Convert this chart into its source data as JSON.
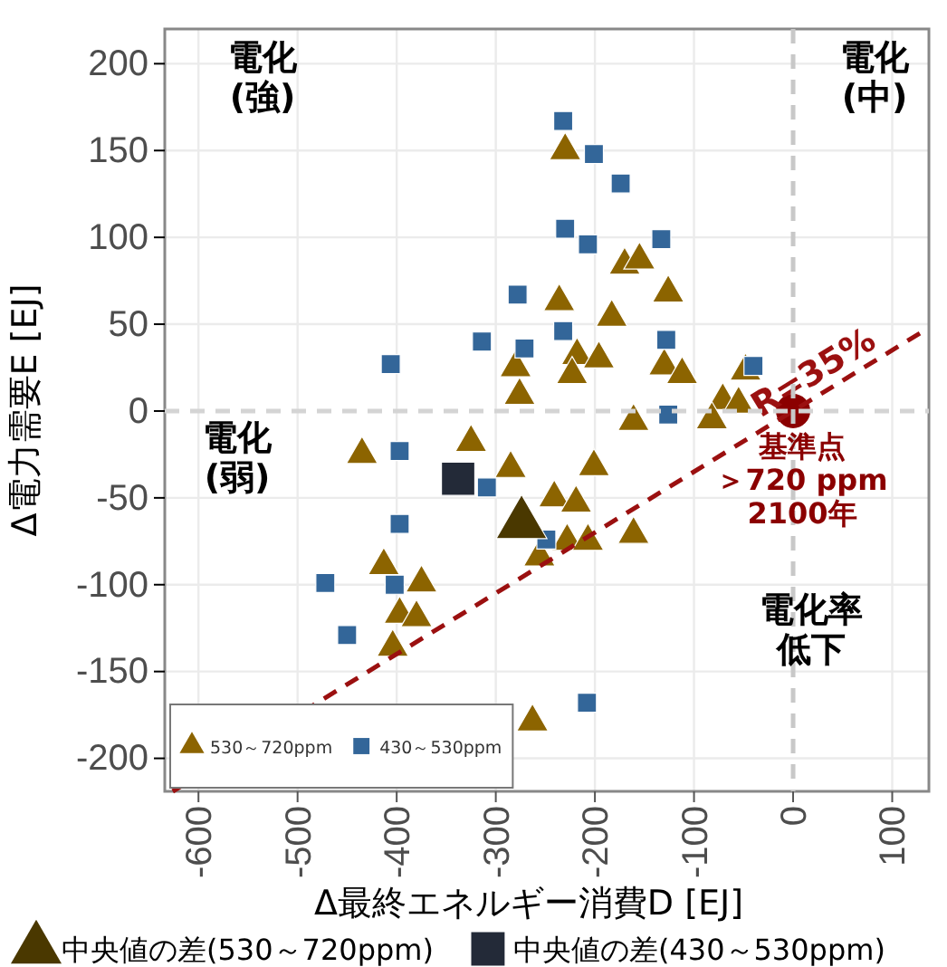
{
  "chart_data": {
    "type": "scatter",
    "xlabel": "Δ最終エネルギー消費D [EJ]",
    "ylabel": "Δ電力需要E [EJ]",
    "xlim": [
      -634,
      137
    ],
    "ylim": [
      -219,
      220
    ],
    "xticks": [
      -600,
      -500,
      -400,
      -300,
      -200,
      -100,
      0,
      100
    ],
    "yticks": [
      -200,
      -150,
      -100,
      -50,
      0,
      50,
      100,
      150,
      200
    ],
    "grid": true,
    "legend": "bottom left",
    "ref_lines": [
      {
        "axis": "x",
        "value": 0,
        "color": "#c8c8c8",
        "line_style": "dashed"
      },
      {
        "axis": "y",
        "value": 0,
        "color": "#d4d4d4",
        "line_style": "dashed"
      }
    ],
    "annotations": [
      "電化(強)",
      "電化(中)",
      "電化(弱)",
      "電化率低下",
      {
        "text": "基準点＞720 ppm2100年",
        "x": 0,
        "y": 0
      }
    ],
    "series": [
      {
        "name": "530～720ppm",
        "color": "#8c6400",
        "marker": "triangle",
        "x": [
          -230,
          -170,
          -155,
          -126,
          -236,
          -183,
          -218,
          -196,
          -223,
          -280,
          -276,
          -130,
          -112,
          -48,
          -71,
          -55,
          -161,
          -82,
          -201,
          -241,
          -219,
          -228,
          -207,
          -256,
          -161,
          -263,
          -285,
          -435,
          -325,
          -413,
          -375,
          -397,
          -380,
          -404
        ],
        "values": [
          150,
          84,
          87,
          68,
          63,
          54,
          32,
          30,
          21,
          25,
          9,
          26,
          21,
          23,
          6,
          4,
          -6,
          -5,
          -32,
          -50,
          -53,
          -75,
          -75,
          -84,
          -71,
          -179,
          -33,
          -25,
          -18,
          -89,
          -99,
          -117,
          -119,
          -136
        ]
      },
      {
        "name": "430～530ppm",
        "color": "#336699",
        "marker": "square",
        "x": [
          -232,
          -201,
          -174,
          -230,
          -207,
          -133,
          -278,
          -232,
          -271,
          -128,
          -40,
          -406,
          -314,
          -126,
          -249,
          -208,
          -397,
          -309,
          -397,
          -472,
          -402,
          -450
        ],
        "values": [
          167,
          148,
          131,
          105,
          96,
          99,
          67,
          46,
          36,
          41,
          26,
          27,
          40,
          -2,
          -74,
          -168,
          -23,
          -44,
          -65,
          -99,
          -100,
          -129
        ]
      },
      {
        "name": "中央値の差(530～720ppm)",
        "color": "#4a3800",
        "marker": "triangle",
        "x": [
          -274
        ],
        "values": [
          -65
        ]
      },
      {
        "name": "中央値の差(430～530ppm)",
        "color": "#232a38",
        "marker": "square",
        "x": [
          -338
        ],
        "values": [
          -39
        ]
      },
      {
        "color": "#8b0000",
        "marker": "circle",
        "x": [
          0
        ],
        "values": [
          0
        ]
      },
      {
        "name": "R=35%",
        "type": "line",
        "color": "#9b1010",
        "line_style": "dashed",
        "x": [
          -626,
          137
        ],
        "values": [
          -219,
          48
        ]
      }
    ]
  }
}
